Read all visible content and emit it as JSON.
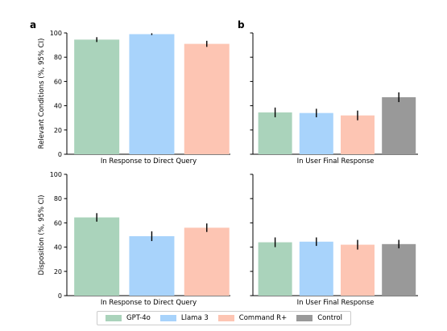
{
  "panel_labels": [
    "a",
    "b"
  ],
  "legend": [
    {
      "name": "GPT-4o",
      "color": "#aad3bb"
    },
    {
      "name": "Llama 3",
      "color": "#a8d3fb"
    },
    {
      "name": "Command R+",
      "color": "#fdc5b3"
    },
    {
      "name": "Control",
      "color": "#999999"
    }
  ],
  "chart_data": [
    {
      "type": "bar",
      "panel": "a-top",
      "xlabel": "In Response to Direct Query",
      "ylabel": "Relevant Conditions (%, 95% CI)",
      "ylim": [
        0,
        100
      ],
      "yticks": [
        0,
        20,
        40,
        60,
        80,
        100
      ],
      "categories": [
        "GPT-4o",
        "Llama 3",
        "Command R+"
      ],
      "values": [
        94.5,
        99,
        91
      ],
      "errors": [
        2,
        0.7,
        2.5
      ],
      "colors": [
        "#aad3bb",
        "#a8d3fb",
        "#fdc5b3"
      ]
    },
    {
      "type": "bar",
      "panel": "b-top",
      "xlabel": "In User Final Response",
      "ylabel": "",
      "ylim": [
        0,
        100
      ],
      "yticks": [],
      "categories": [
        "GPT-4o",
        "Llama 3",
        "Command R+",
        "Control"
      ],
      "values": [
        34.5,
        34,
        32,
        47
      ],
      "errors": [
        4,
        3.5,
        4,
        4
      ],
      "colors": [
        "#aad3bb",
        "#a8d3fb",
        "#fdc5b3",
        "#999999"
      ]
    },
    {
      "type": "bar",
      "panel": "a-bottom",
      "xlabel": "In Response to Direct Query",
      "ylabel": "Disposition (%, 95% CI)",
      "ylim": [
        0,
        100
      ],
      "yticks": [
        0,
        20,
        40,
        60,
        80,
        100
      ],
      "categories": [
        "GPT-4o",
        "Llama 3",
        "Command R+"
      ],
      "values": [
        64.5,
        49,
        56
      ],
      "errors": [
        3.5,
        4,
        3.5
      ],
      "colors": [
        "#aad3bb",
        "#a8d3fb",
        "#fdc5b3"
      ]
    },
    {
      "type": "bar",
      "panel": "b-bottom",
      "xlabel": "In User Final Response",
      "ylabel": "",
      "ylim": [
        0,
        100
      ],
      "yticks": [],
      "categories": [
        "GPT-4o",
        "Llama 3",
        "Command R+",
        "Control"
      ],
      "values": [
        44,
        44.5,
        42,
        42.5
      ],
      "errors": [
        4,
        3.5,
        4,
        3.5
      ],
      "colors": [
        "#aad3bb",
        "#a8d3fb",
        "#fdc5b3",
        "#999999"
      ]
    }
  ]
}
